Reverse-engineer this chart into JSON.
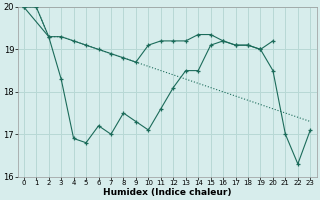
{
  "xlabel": "Humidex (Indice chaleur)",
  "x": [
    0,
    1,
    2,
    3,
    4,
    5,
    6,
    7,
    8,
    9,
    10,
    11,
    12,
    13,
    14,
    15,
    16,
    17,
    18,
    19,
    20,
    21,
    22,
    23
  ],
  "line_dotted": [
    20.0,
    20.0,
    19.3,
    19.3,
    19.2,
    19.1,
    19.0,
    18.9,
    18.8,
    18.7,
    18.6,
    18.5,
    18.4,
    18.3,
    18.2,
    18.1,
    18.0,
    17.9,
    17.8,
    17.7,
    17.6,
    17.5,
    17.4,
    17.3
  ],
  "line_middle": [
    20.0,
    20.0,
    19.3,
    19.3,
    19.2,
    19.1,
    19.0,
    18.9,
    18.8,
    18.7,
    19.1,
    19.2,
    19.2,
    19.2,
    19.35,
    19.35,
    19.2,
    19.1,
    19.1,
    19.0,
    19.2,
    null,
    null,
    null
  ],
  "line_jagged": [
    20.0,
    null,
    19.3,
    18.3,
    16.9,
    16.8,
    17.2,
    17.0,
    17.5,
    17.3,
    17.1,
    17.6,
    18.1,
    18.5,
    18.5,
    19.1,
    19.2,
    19.1,
    19.1,
    19.0,
    18.5,
    17.0,
    16.3,
    17.1
  ],
  "bg_color": "#d7edec",
  "grid_color": "#b8d8d5",
  "line_color": "#1b6b5a",
  "ylim": [
    16.0,
    20.0
  ],
  "yticks": [
    16,
    17,
    18,
    19,
    20
  ],
  "xlim": [
    -0.5,
    23.5
  ]
}
